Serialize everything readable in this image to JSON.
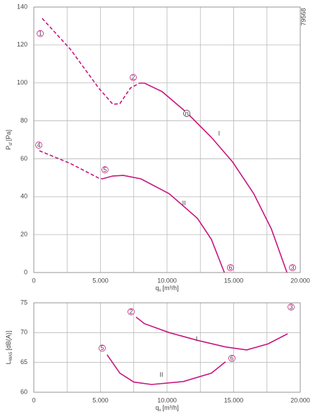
{
  "chart_data": [
    {
      "type": "line",
      "note": "79568",
      "ylabel": {
        "main": "P",
        "sub": "sf",
        "unit": "[Pa]"
      },
      "xlabel": {
        "main": "q",
        "sub": "v",
        "unit": "[m³/h]"
      },
      "xlim": [
        0,
        20000
      ],
      "xticks": [
        0,
        {
          "value": 5000,
          "label": "5.000"
        },
        {
          "value": 10000,
          "label": "10.000"
        },
        {
          "value": 15000,
          "label": "15.000"
        },
        {
          "value": 20000,
          "label": "20.000"
        }
      ],
      "xminor": [
        2500,
        7500,
        12500,
        17500
      ],
      "ylim": [
        0,
        140
      ],
      "yticks": [
        0,
        20,
        40,
        60,
        80,
        100,
        120,
        140
      ],
      "grid": true,
      "series": [
        {
          "style": "dashed",
          "color": "#c8157e",
          "x": [
            630,
            2750,
            4870,
            5930,
            6460,
            7250,
            7940
          ],
          "values": [
            134,
            117.7,
            97.3,
            88.7,
            89.1,
            97.3,
            99.9
          ]
        },
        {
          "name": "I",
          "style": "solid",
          "color": "#c8157e",
          "x": [
            7940,
            8300,
            9630,
            11480,
            13330,
            14920,
            16510,
            17830,
            19000
          ],
          "values": [
            99.9,
            99.9,
            95.4,
            84.3,
            71.3,
            58.3,
            41.6,
            23,
            0
          ]
        },
        {
          "style": "dashed",
          "color": "#c8157e",
          "x": [
            420,
            2750,
            4870,
            5130
          ],
          "values": [
            64.2,
            57.5,
            49.8,
            49.4
          ]
        },
        {
          "name": "II",
          "style": "solid",
          "color": "#c8157e",
          "x": [
            5130,
            5930,
            6720,
            8040,
            10160,
            12280,
            13330,
            14300
          ],
          "values": [
            49.4,
            50.9,
            51.2,
            49.4,
            41.6,
            28.6,
            17.5,
            0
          ]
        }
      ],
      "markers": [
        {
          "text": "1",
          "x": 480,
          "y": 126
        },
        {
          "text": "2",
          "x": 7460,
          "y": 102.9
        },
        {
          "text": "n",
          "x": 11480,
          "y": 83.9
        },
        {
          "text": "4",
          "x": 370,
          "y": 67.2
        },
        {
          "text": "5",
          "x": 5340,
          "y": 54.2
        },
        {
          "text": "6",
          "x": 14760,
          "y": 2.6
        },
        {
          "text": "3",
          "x": 19420,
          "y": 2.6
        }
      ],
      "labels": [
        {
          "text": "I",
          "x": 13910,
          "y": 73.2
        },
        {
          "text": "II",
          "x": 11270,
          "y": 36.4
        }
      ]
    },
    {
      "type": "line",
      "ylabel": {
        "main": "L",
        "sub": "WA5",
        "unit": "[dB(A)]"
      },
      "xlabel": {
        "main": "q",
        "sub": "v",
        "unit": "[m³/h]"
      },
      "xlim": [
        0,
        20000
      ],
      "xticks": [
        0,
        {
          "value": 5000,
          "label": "5.000"
        },
        {
          "value": 10000,
          "label": "10.000"
        },
        {
          "value": 15000,
          "label": "15.000"
        },
        {
          "value": 20000,
          "label": "20.000"
        }
      ],
      "xminor": [
        2500,
        7500,
        12500,
        17500
      ],
      "ylim": [
        60,
        75
      ],
      "yticks": [
        60,
        65,
        70,
        75
      ],
      "grid": true,
      "series": [
        {
          "name": "I",
          "style": "solid",
          "color": "#c8157e",
          "x": [
            7670,
            8300,
            10160,
            12280,
            14390,
            15980,
            17570,
            19050
          ],
          "values": [
            72.6,
            71.5,
            70.0,
            68.7,
            67.6,
            67.1,
            68.1,
            69.8
          ]
        },
        {
          "name": "II",
          "style": "solid",
          "color": "#c8157e",
          "x": [
            5500,
            6460,
            7510,
            8840,
            11220,
            13330,
            14390
          ],
          "values": [
            66.3,
            63.2,
            61.7,
            61.3,
            61.8,
            63.2,
            65.1
          ]
        }
      ],
      "markers": [
        {
          "text": "2",
          "x": 7300,
          "y": 73.5
        },
        {
          "text": "3",
          "x": 19310,
          "y": 74.3
        },
        {
          "text": "5",
          "x": 5130,
          "y": 67.4
        },
        {
          "text": "6",
          "x": 14870,
          "y": 65.7
        }
      ],
      "labels": [
        {
          "text": "I",
          "x": 12220,
          "y": 68.9
        },
        {
          "text": "II",
          "x": 9580,
          "y": 62.9
        }
      ]
    }
  ]
}
